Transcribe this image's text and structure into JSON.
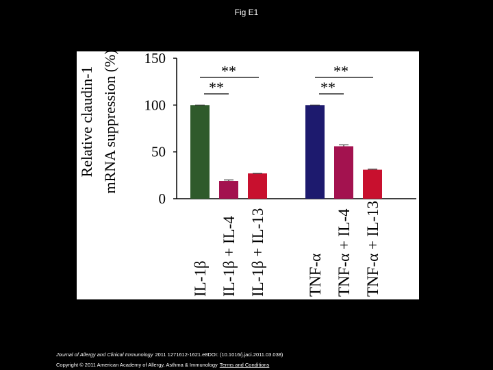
{
  "slide_title": "Fig E1",
  "chart_data": {
    "type": "bar",
    "ylabel": [
      "Relative claudin-1",
      "mRNA suppression (%)"
    ],
    "categories": [
      "IL-1β",
      "IL-1β + IL-4",
      "IL-1β + IL-13",
      "TNF-α",
      "TNF-α + IL-4",
      "TNF-α + IL-13"
    ],
    "values": [
      100,
      19,
      27,
      100,
      56,
      31
    ],
    "errors": [
      0,
      1,
      0,
      0,
      1.5,
      0.5
    ],
    "colors": [
      "#2f5a2b",
      "#a3124f",
      "#c8102e",
      "#1d1a6e",
      "#a3124f",
      "#c8102e"
    ],
    "ylim": [
      0,
      150
    ],
    "yticks": [
      0,
      50,
      100,
      150
    ],
    "grid": false,
    "annotations": [
      "**",
      "**",
      "**",
      "**"
    ]
  },
  "footer": {
    "journal": "Journal of Allergy and Clinical Immunology",
    "citation": "2011 1271612-1621.e8DOI: (10.1016/j.jaci.2011.03.038)",
    "copyright": "Copyright © 2011 American Academy of Allergy, Asthma & Immunology",
    "link": "Terms and Conditions"
  }
}
